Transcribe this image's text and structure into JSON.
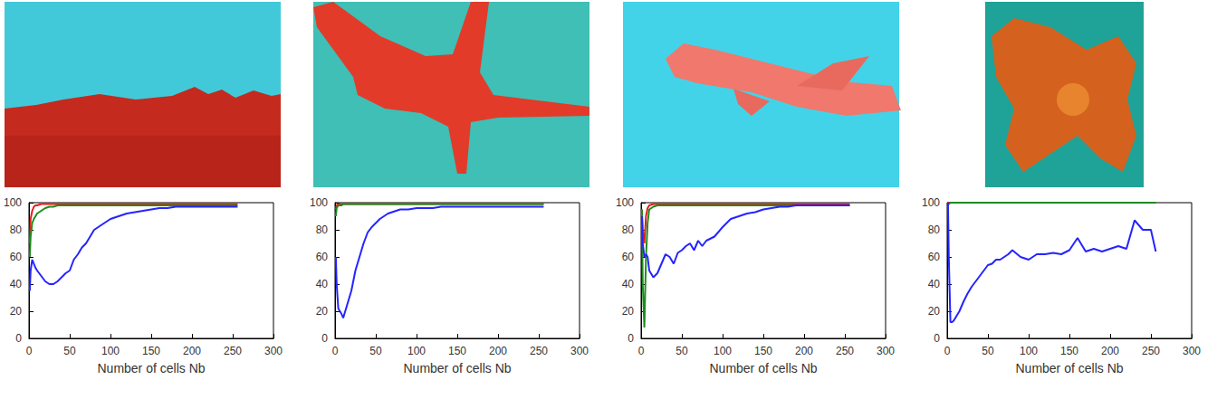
{
  "chart_data": [
    {
      "type": "line",
      "x_label": "Number of cells Nb",
      "xlim": [
        0,
        300
      ],
      "xticks": [
        0,
        50,
        100,
        150,
        200,
        250,
        300
      ],
      "ylim": [
        0,
        100
      ],
      "yticks": [
        0,
        20,
        40,
        60,
        80,
        100
      ],
      "grid": false,
      "x": [
        1,
        2,
        4,
        6,
        8,
        10,
        15,
        20,
        25,
        30,
        35,
        40,
        45,
        50,
        55,
        60,
        65,
        70,
        75,
        80,
        90,
        100,
        110,
        120,
        130,
        140,
        150,
        160,
        170,
        180,
        190,
        200,
        210,
        220,
        230,
        240,
        250,
        256
      ],
      "series": [
        {
          "color": "#e0201c",
          "values": [
            70,
            88,
            94,
            97,
            98,
            98,
            99,
            99,
            99,
            99,
            99,
            99,
            99,
            99,
            99,
            99,
            99,
            99,
            99,
            99,
            99,
            99,
            99,
            99,
            99,
            99,
            99,
            99,
            99,
            99,
            99,
            99,
            99,
            99,
            99,
            99,
            99,
            99
          ]
        },
        {
          "color": "#1e8c1e",
          "values": [
            60,
            75,
            85,
            88,
            90,
            92,
            94,
            96,
            97,
            97,
            98,
            98,
            98,
            98,
            98,
            98,
            98,
            98,
            98,
            98,
            98,
            98,
            98,
            98,
            98,
            98,
            98,
            98,
            98,
            98,
            98,
            98,
            98,
            98,
            98,
            98,
            98,
            98
          ]
        },
        {
          "color": "#2424ff",
          "values": [
            35,
            50,
            58,
            55,
            52,
            50,
            46,
            42,
            40,
            40,
            42,
            45,
            48,
            50,
            58,
            62,
            67,
            70,
            75,
            80,
            84,
            88,
            90,
            92,
            93,
            94,
            95,
            96,
            96,
            97,
            97,
            97,
            97,
            97,
            97,
            97,
            97,
            97
          ]
        }
      ]
    },
    {
      "type": "line",
      "x_label": "Number of cells Nb",
      "xlim": [
        0,
        300
      ],
      "xticks": [
        0,
        50,
        100,
        150,
        200,
        250,
        300
      ],
      "ylim": [
        0,
        100
      ],
      "yticks": [
        0,
        20,
        40,
        60,
        80,
        100
      ],
      "grid": false,
      "x": [
        1,
        2,
        4,
        6,
        8,
        10,
        15,
        20,
        25,
        30,
        35,
        40,
        45,
        50,
        55,
        60,
        65,
        70,
        75,
        80,
        90,
        100,
        110,
        120,
        130,
        140,
        150,
        160,
        170,
        180,
        190,
        200,
        210,
        220,
        230,
        240,
        250,
        256
      ],
      "series": [
        {
          "color": "#e0201c",
          "values": [
            95,
            98,
            99,
            99,
            99,
            99,
            99,
            99,
            99,
            99,
            99,
            99,
            99,
            99,
            99,
            99,
            99,
            99,
            99,
            99,
            99,
            99,
            99,
            99,
            99,
            99,
            99,
            99,
            99,
            99,
            99,
            99,
            99,
            99,
            99,
            99,
            99,
            99
          ]
        },
        {
          "color": "#1e8c1e",
          "values": [
            90,
            96,
            98,
            98,
            98,
            99,
            99,
            99,
            99,
            99,
            99,
            99,
            99,
            99,
            99,
            99,
            99,
            99,
            99,
            99,
            99,
            99,
            99,
            99,
            99,
            99,
            99,
            99,
            99,
            99,
            99,
            99,
            99,
            99,
            99,
            99,
            99,
            99
          ]
        },
        {
          "color": "#2424ff",
          "values": [
            60,
            40,
            22,
            20,
            18,
            15,
            25,
            35,
            50,
            60,
            70,
            78,
            82,
            85,
            88,
            90,
            92,
            93,
            94,
            95,
            95,
            96,
            96,
            96,
            97,
            97,
            97,
            97,
            97,
            97,
            97,
            97,
            97,
            97,
            97,
            97,
            97,
            97
          ]
        }
      ]
    },
    {
      "type": "line",
      "x_label": "Number of cells Nb",
      "xlim": [
        0,
        300
      ],
      "xticks": [
        0,
        50,
        100,
        150,
        200,
        250,
        300
      ],
      "ylim": [
        0,
        100
      ],
      "yticks": [
        0,
        20,
        40,
        60,
        80,
        100
      ],
      "grid": false,
      "x": [
        1,
        2,
        4,
        6,
        8,
        10,
        15,
        20,
        25,
        30,
        35,
        40,
        45,
        50,
        55,
        60,
        65,
        70,
        75,
        80,
        90,
        100,
        110,
        120,
        130,
        140,
        150,
        160,
        170,
        180,
        190,
        200,
        210,
        220,
        230,
        240,
        250,
        256
      ],
      "series": [
        {
          "color": "#e0201c",
          "values": [
            95,
            80,
            70,
            90,
            96,
            98,
            99,
            99,
            99,
            99,
            99,
            99,
            99,
            99,
            99,
            99,
            99,
            99,
            99,
            99,
            99,
            99,
            99,
            99,
            99,
            99,
            99,
            99,
            99,
            99,
            99,
            99,
            99,
            99,
            99,
            99,
            99,
            99
          ]
        },
        {
          "color": "#1e8c1e",
          "values": [
            95,
            40,
            8,
            60,
            85,
            95,
            97,
            98,
            98,
            98,
            98,
            98,
            98,
            98,
            98,
            98,
            98,
            98,
            98,
            98,
            98,
            98,
            98,
            98,
            98,
            98,
            98,
            98,
            98,
            98,
            98,
            98,
            98,
            98,
            98,
            98,
            98,
            98
          ]
        },
        {
          "color": "#2424ff",
          "values": [
            90,
            70,
            60,
            62,
            60,
            50,
            45,
            48,
            55,
            62,
            60,
            55,
            63,
            65,
            68,
            70,
            65,
            72,
            68,
            72,
            75,
            82,
            88,
            90,
            92,
            93,
            95,
            96,
            97,
            97,
            98,
            98,
            98,
            98,
            98,
            98,
            98,
            98
          ]
        }
      ]
    },
    {
      "type": "line",
      "x_label": "Number of cells Nb",
      "xlim": [
        0,
        300
      ],
      "xticks": [
        0,
        50,
        100,
        150,
        200,
        250,
        300
      ],
      "ylim": [
        0,
        100
      ],
      "yticks": [
        0,
        20,
        40,
        60,
        80,
        100
      ],
      "grid": false,
      "x": [
        1,
        2,
        4,
        6,
        8,
        10,
        15,
        20,
        25,
        30,
        35,
        40,
        45,
        50,
        55,
        60,
        65,
        70,
        75,
        80,
        90,
        100,
        110,
        120,
        130,
        140,
        150,
        160,
        170,
        180,
        190,
        200,
        210,
        220,
        230,
        240,
        250,
        256
      ],
      "series": [
        {
          "color": "#e0201c",
          "values": [
            100,
            100,
            100,
            100,
            100,
            100,
            100,
            100,
            100,
            100,
            100,
            100,
            100,
            100,
            100,
            100,
            100,
            100,
            100,
            100,
            100,
            100,
            100,
            100,
            100,
            100,
            100,
            100,
            100,
            100,
            100,
            100,
            100,
            100,
            100,
            100,
            100,
            100
          ]
        },
        {
          "color": "#1e8c1e",
          "values": [
            98,
            99,
            100,
            100,
            100,
            100,
            100,
            100,
            100,
            100,
            100,
            100,
            100,
            100,
            100,
            100,
            100,
            100,
            100,
            100,
            100,
            100,
            100,
            100,
            100,
            100,
            100,
            100,
            100,
            100,
            100,
            100,
            100,
            100,
            100,
            100,
            100,
            100
          ]
        },
        {
          "color": "#2424ff",
          "values": [
            100,
            60,
            12,
            12,
            13,
            15,
            20,
            27,
            33,
            38,
            42,
            46,
            50,
            54,
            55,
            58,
            58,
            60,
            62,
            65,
            60,
            58,
            62,
            62,
            63,
            62,
            65,
            74,
            64,
            66,
            64,
            66,
            68,
            66,
            87,
            80,
            80,
            64
          ]
        }
      ]
    }
  ]
}
